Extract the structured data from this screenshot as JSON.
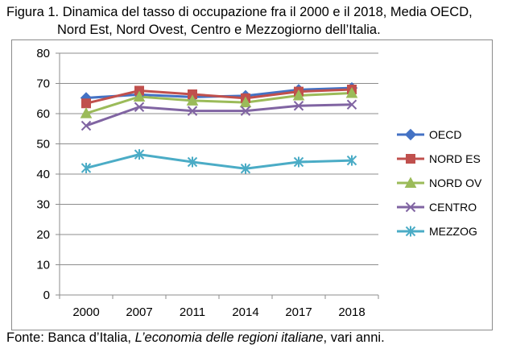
{
  "caption": {
    "line1": "Figura 1. Dinamica del tasso di occupazione fra il 2000 e il 2018, Media OECD,",
    "line2": "Nord Est, Nord Ovest, Centro e Mezzogiorno dell’Italia."
  },
  "source": {
    "prefix": "Fonte: Banca d’Italia, ",
    "title": "L’economia delle regioni italiane",
    "suffix": ", vari anni."
  },
  "chart_data": {
    "type": "line",
    "categories": [
      "2000",
      "2007",
      "2011",
      "2014",
      "2017",
      "2018"
    ],
    "ylim": [
      0,
      80
    ],
    "yticks": [
      0,
      10,
      20,
      30,
      40,
      50,
      60,
      70,
      80
    ],
    "grid": true,
    "legend": "right",
    "series": [
      {
        "name": "OECD",
        "color": "#4472c4",
        "marker": "diamond",
        "values": [
          65.2,
          66.3,
          65.5,
          65.9,
          67.9,
          68.5
        ]
      },
      {
        "name": "NORD ES",
        "color": "#c0504d",
        "marker": "square",
        "values": [
          63.4,
          67.6,
          66.4,
          65.1,
          67.3,
          68.0
        ]
      },
      {
        "name": "NORD OV",
        "color": "#9bbb59",
        "marker": "triangle",
        "values": [
          60.1,
          65.6,
          64.3,
          63.7,
          66.0,
          66.8
        ]
      },
      {
        "name": "CENTRO",
        "color": "#8064a2",
        "marker": "x",
        "values": [
          56.0,
          62.2,
          60.9,
          60.9,
          62.6,
          63.0
        ]
      },
      {
        "name": "MEZZOG",
        "color": "#4bacc6",
        "marker": "star",
        "values": [
          42.0,
          46.5,
          44.0,
          41.8,
          44.0,
          44.5
        ]
      }
    ]
  }
}
